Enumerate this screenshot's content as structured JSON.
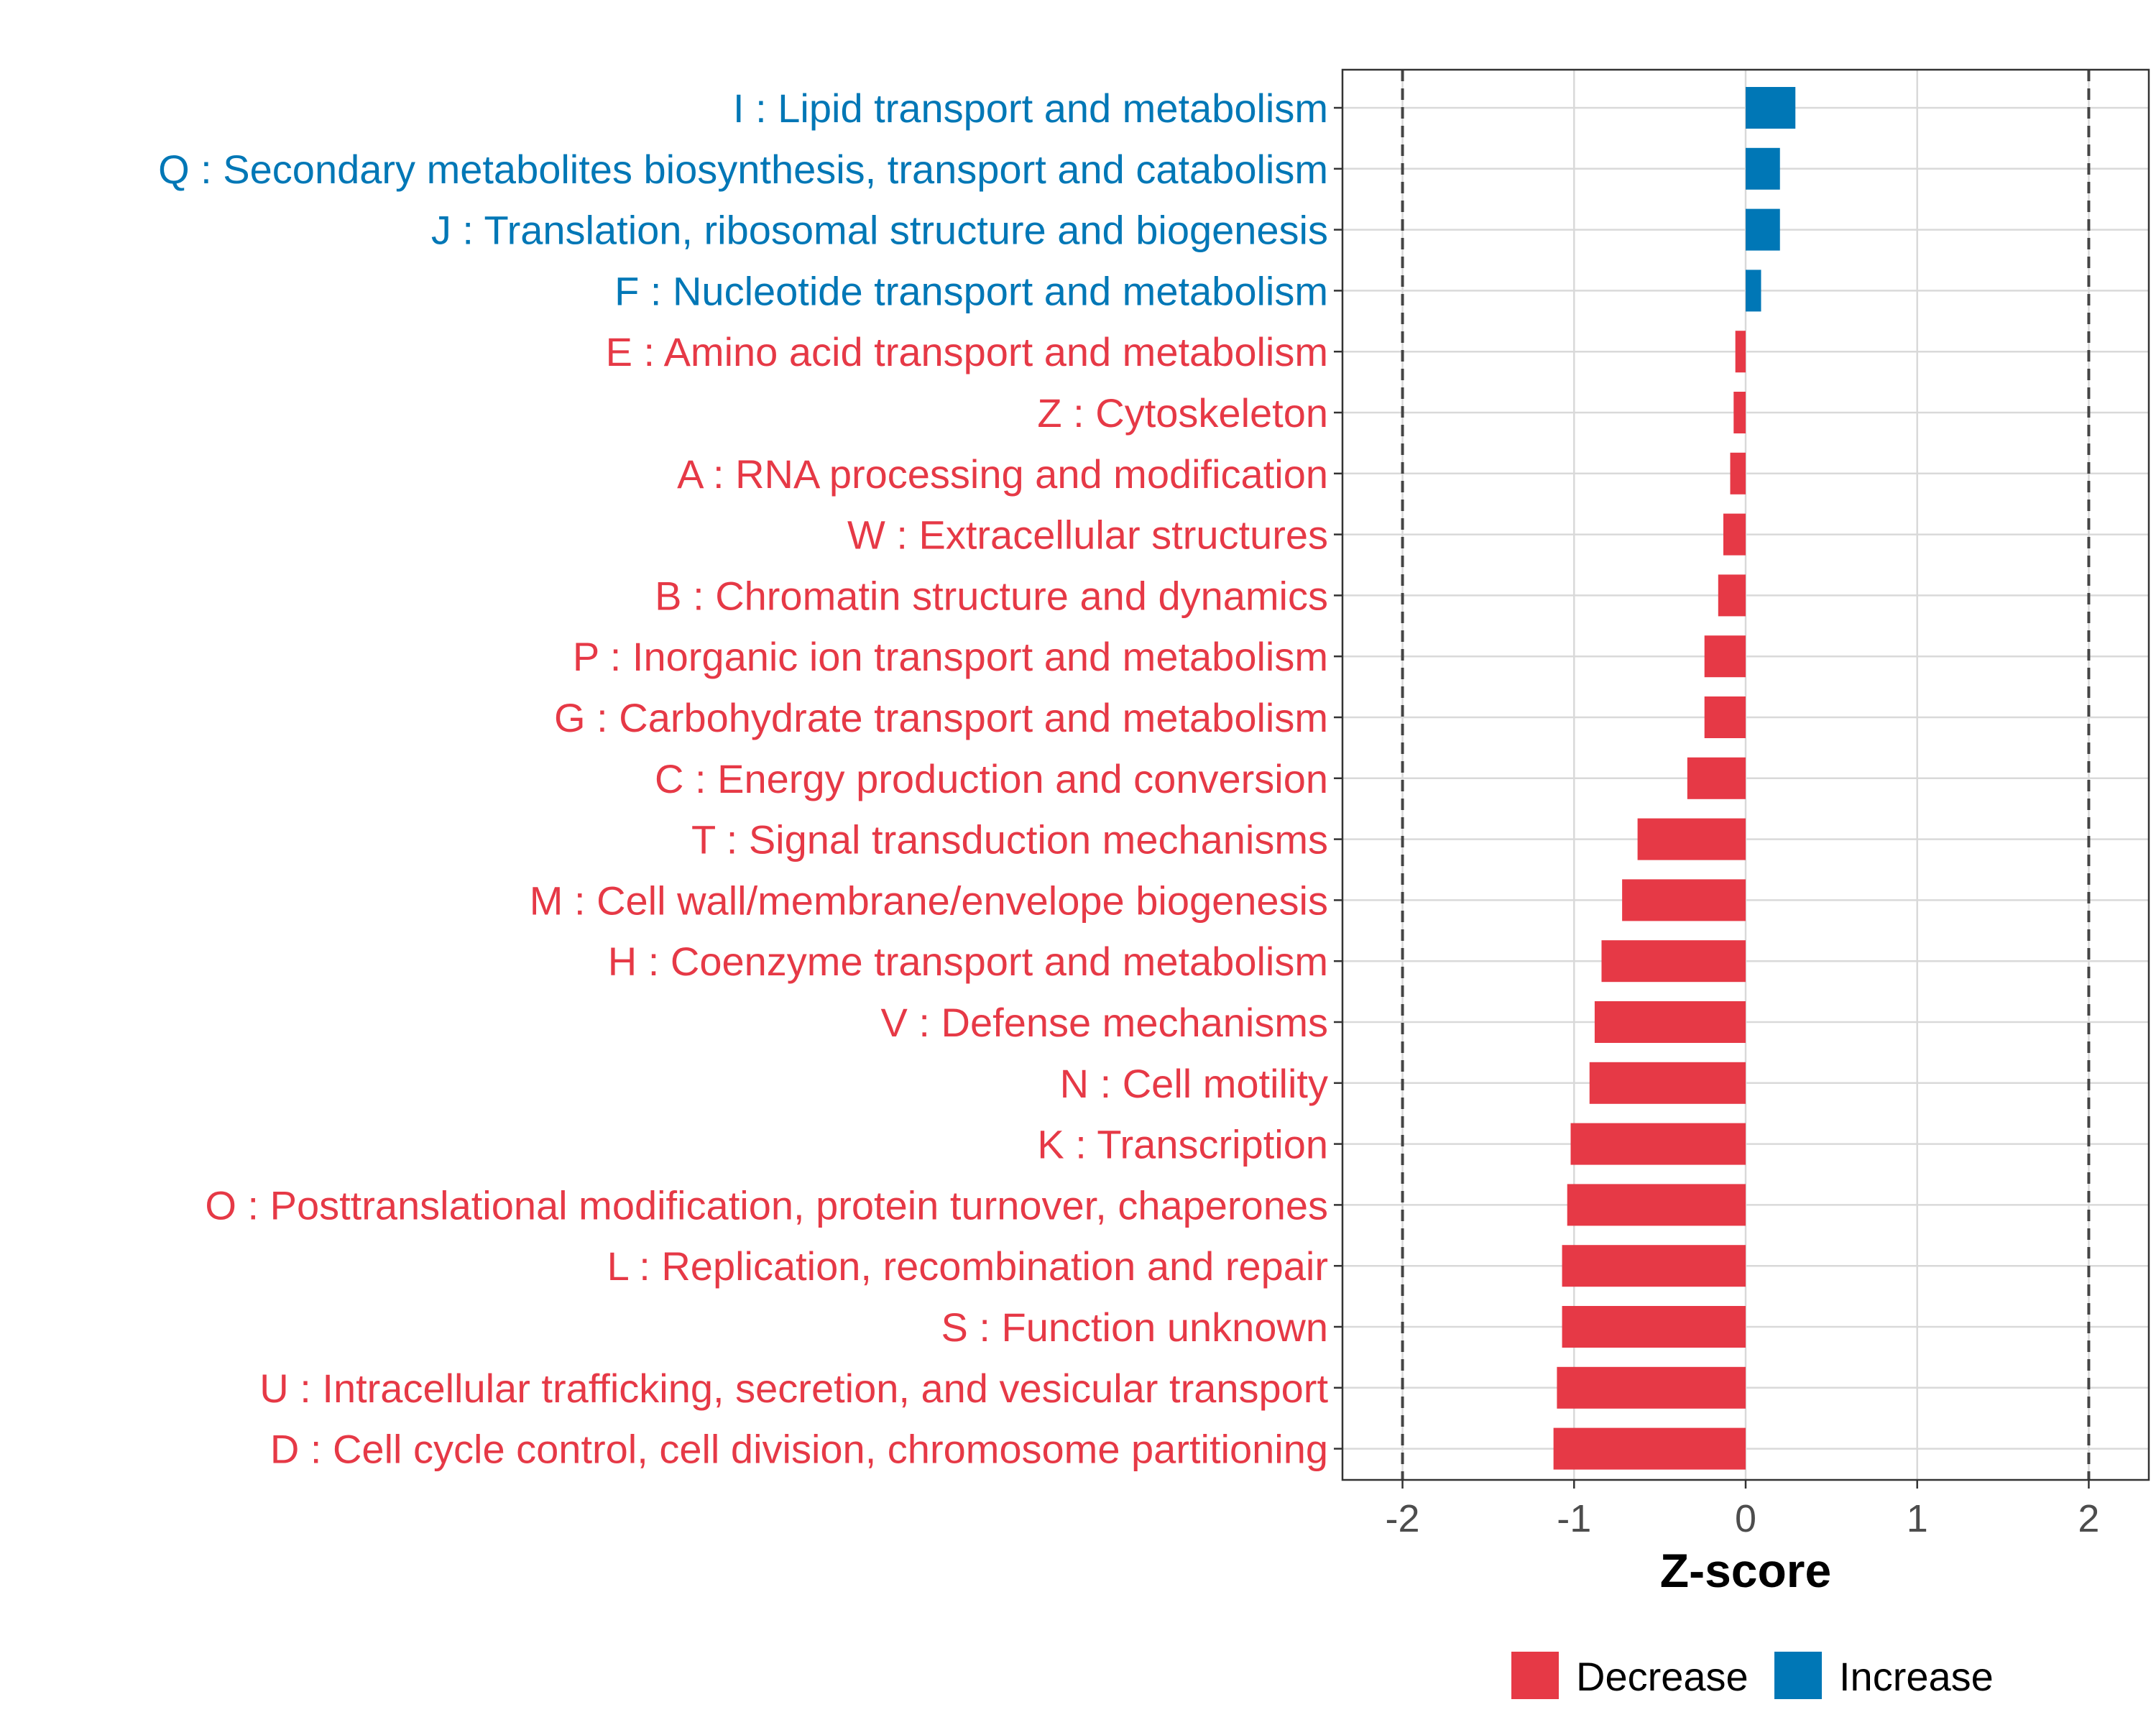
{
  "chart_data": {
    "type": "bar",
    "orientation": "horizontal",
    "title": "",
    "xlabel": "Z-score",
    "ylabel": "",
    "xlim": [
      -2.35,
      2.35
    ],
    "xticks": [
      -2,
      -1,
      0,
      1,
      2
    ],
    "xtick_labels": [
      "-2",
      "-1",
      "0",
      "1",
      "2"
    ],
    "reference_lines": [
      -2,
      2
    ],
    "grid": true,
    "legend_position": "bottom",
    "colors": {
      "Decrease": "#E63946",
      "Increase": "#0077B6"
    },
    "legend": [
      {
        "label": "Decrease",
        "group": "Decrease"
      },
      {
        "label": "Increase",
        "group": "Increase"
      }
    ],
    "categories": [
      "I : Lipid transport and metabolism",
      "Q : Secondary metabolites biosynthesis, transport and catabolism",
      "J : Translation, ribosomal structure and biogenesis",
      "F : Nucleotide transport and metabolism",
      "E : Amino acid transport and metabolism",
      "Z : Cytoskeleton",
      "A : RNA processing and modification",
      "W : Extracellular structures",
      "B : Chromatin structure and dynamics",
      "P : Inorganic ion transport and metabolism",
      "G : Carbohydrate transport and metabolism",
      "C : Energy production and conversion",
      "T : Signal transduction mechanisms",
      "M : Cell wall/membrane/envelope biogenesis",
      "H : Coenzyme transport and metabolism",
      "V : Defense mechanisms",
      "N : Cell motility",
      "K : Transcription",
      "O : Posttranslational modification, protein turnover, chaperones",
      "L : Replication, recombination and repair",
      "S : Function unknown",
      "U : Intracellular trafficking, secretion, and vesicular transport",
      "D : Cell cycle control, cell division, chromosome partitioning"
    ],
    "values": [
      0.29,
      0.2,
      0.2,
      0.09,
      -0.06,
      -0.07,
      -0.09,
      -0.13,
      -0.16,
      -0.24,
      -0.24,
      -0.34,
      -0.63,
      -0.72,
      -0.84,
      -0.88,
      -0.91,
      -1.02,
      -1.04,
      -1.07,
      -1.07,
      -1.1,
      -1.12
    ],
    "groups": [
      "Increase",
      "Increase",
      "Increase",
      "Increase",
      "Decrease",
      "Decrease",
      "Decrease",
      "Decrease",
      "Decrease",
      "Decrease",
      "Decrease",
      "Decrease",
      "Decrease",
      "Decrease",
      "Decrease",
      "Decrease",
      "Decrease",
      "Decrease",
      "Decrease",
      "Decrease",
      "Decrease",
      "Decrease",
      "Decrease"
    ]
  }
}
